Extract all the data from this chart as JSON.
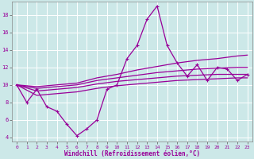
{
  "xlabel": "Windchill (Refroidissement éolien,°C)",
  "background_color": "#cce8e8",
  "grid_color": "#ffffff",
  "line_color": "#990099",
  "xlim": [
    -0.5,
    23.5
  ],
  "ylim": [
    3.5,
    19.5
  ],
  "yticks": [
    4,
    6,
    8,
    10,
    12,
    14,
    16,
    18
  ],
  "xticks": [
    0,
    1,
    2,
    3,
    4,
    5,
    6,
    7,
    8,
    9,
    10,
    11,
    12,
    13,
    14,
    15,
    16,
    17,
    18,
    19,
    20,
    21,
    22,
    23
  ],
  "series": {
    "main": {
      "x": [
        0,
        1,
        2,
        3,
        4,
        5,
        6,
        7,
        8,
        9,
        10,
        11,
        12,
        13,
        14,
        15,
        16,
        17,
        18,
        19,
        20,
        21,
        22,
        23
      ],
      "y": [
        10,
        8,
        9.5,
        7.5,
        7,
        5.5,
        4.2,
        5,
        6,
        9.5,
        10,
        13,
        14.5,
        17.5,
        19,
        14.5,
        12.5,
        11,
        12.3,
        10.5,
        12,
        11.8,
        10.5,
        11.2
      ]
    },
    "upper_envelope": {
      "x": [
        0,
        2,
        4,
        6,
        8,
        10,
        12,
        14,
        16,
        18,
        20,
        22,
        23
      ],
      "y": [
        10,
        9.8,
        10.0,
        10.2,
        10.8,
        11.2,
        11.7,
        12.1,
        12.5,
        12.8,
        13.0,
        13.3,
        13.4
      ]
    },
    "mid_upper": {
      "x": [
        0,
        2,
        4,
        6,
        8,
        10,
        12,
        14,
        16,
        18,
        20,
        22,
        23
      ],
      "y": [
        10,
        9.6,
        9.8,
        10.0,
        10.5,
        10.8,
        11.1,
        11.4,
        11.6,
        11.8,
        11.9,
        12.0,
        12.0
      ]
    },
    "mid_lower": {
      "x": [
        0,
        2,
        4,
        6,
        8,
        10,
        12,
        14,
        16,
        18,
        20,
        22,
        23
      ],
      "y": [
        10,
        9.3,
        9.5,
        9.7,
        10.1,
        10.4,
        10.6,
        10.8,
        11.0,
        11.1,
        11.2,
        11.2,
        11.2
      ]
    },
    "lower_envelope": {
      "x": [
        0,
        2,
        4,
        6,
        8,
        10,
        12,
        14,
        16,
        18,
        20,
        22,
        23
      ],
      "y": [
        10,
        8.8,
        9.0,
        9.2,
        9.6,
        9.9,
        10.1,
        10.3,
        10.5,
        10.6,
        10.7,
        10.8,
        10.8
      ]
    }
  }
}
